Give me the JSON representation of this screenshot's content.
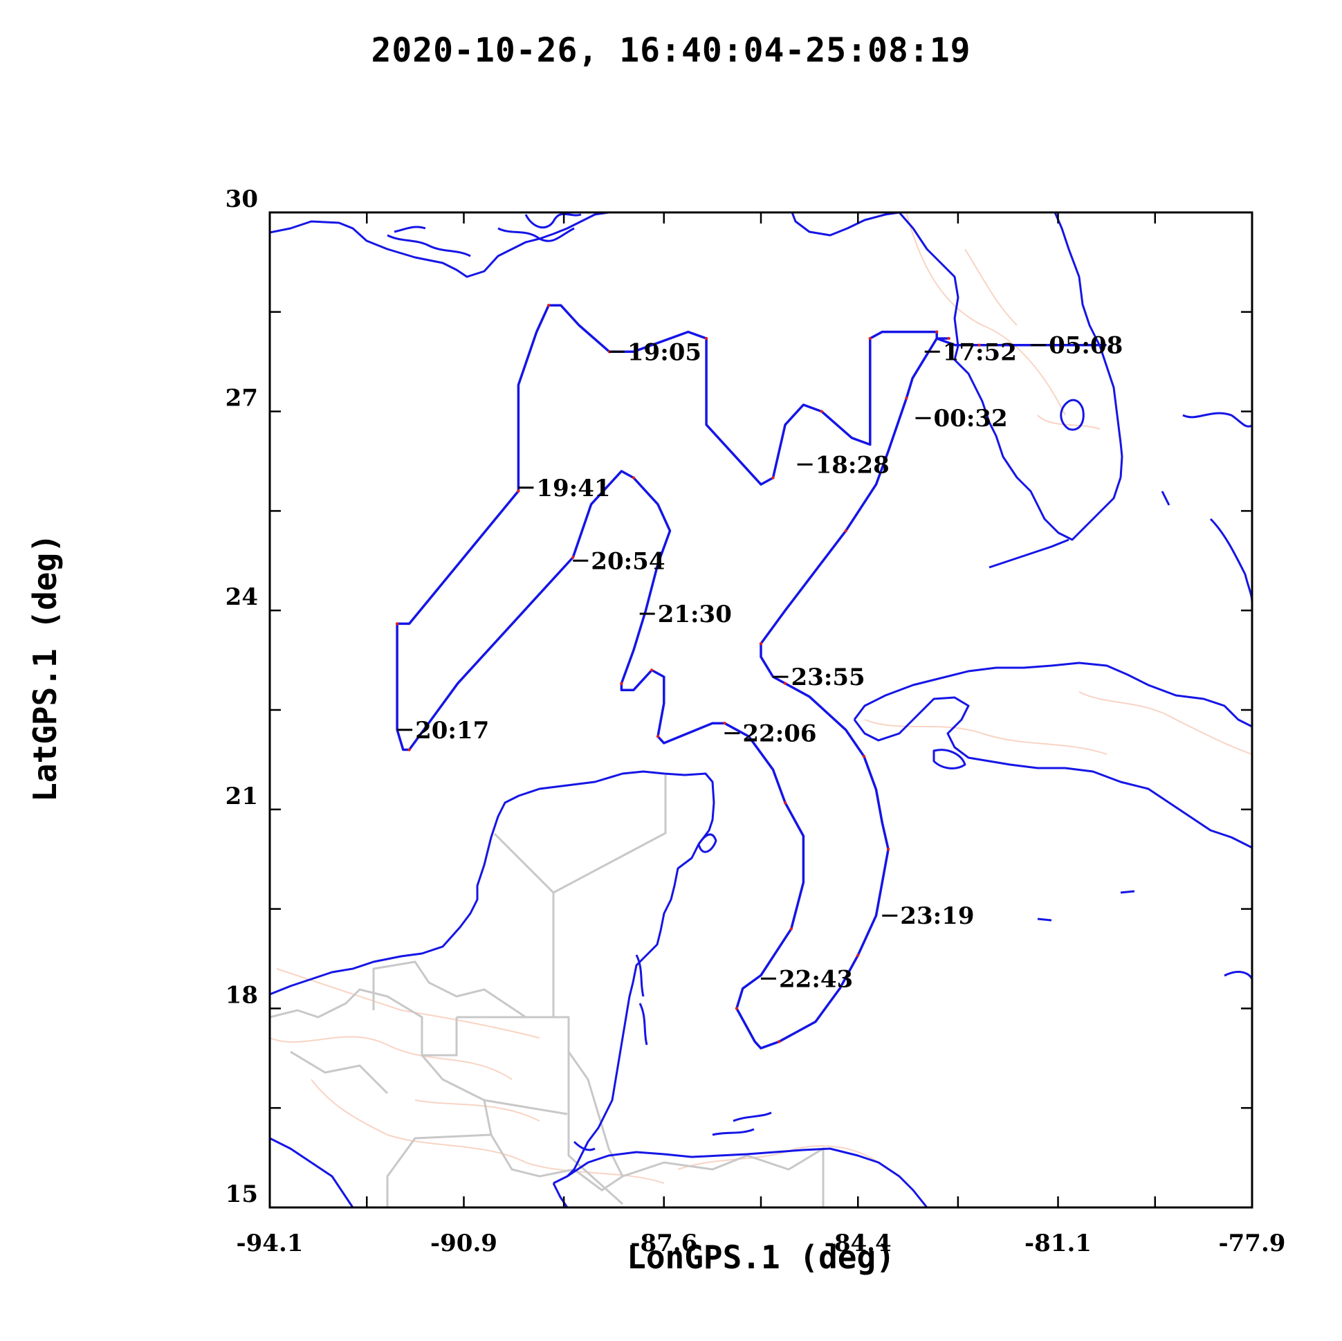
{
  "title": "2020-10-26, 16:40:04-25:08:19",
  "xlabel": "LonGPS.1 (deg)",
  "ylabel": "LatGPS.1 (deg)",
  "colors": {
    "coastline": "#1515e6",
    "track": "#1515e6",
    "track_marks": "#e02020",
    "borders": "#c8c8c8",
    "rivers": "#f8d4c4",
    "axes": "#000000"
  },
  "chart_data": {
    "type": "map-track",
    "xlim": [
      -94.1,
      -77.9
    ],
    "ylim": [
      15,
      30
    ],
    "x_tick_labels": [
      "-94.1",
      "-90.9",
      "-87.6",
      "-84.4",
      "-81.1",
      "-77.9"
    ],
    "y_tick_labels": [
      "15",
      "18",
      "21",
      "24",
      "27",
      "30"
    ],
    "x_ticks": [
      -94.1,
      -92.5,
      -90.9,
      -89.25,
      -87.6,
      -86.0,
      -84.4,
      -82.75,
      -81.1,
      -79.5,
      -77.9
    ],
    "y_ticks": [
      15,
      16.5,
      18,
      19.5,
      21,
      22.5,
      24,
      25.5,
      27,
      28.5,
      30
    ],
    "track": [
      [
        -80.3,
        28.0
      ],
      [
        -82.4,
        28.0
      ],
      [
        -82.8,
        28.0
      ],
      [
        -83.1,
        28.1
      ],
      [
        -83.1,
        28.2
      ],
      [
        -83.6,
        28.2
      ],
      [
        -84.0,
        28.2
      ],
      [
        -84.2,
        28.1
      ],
      [
        -84.2,
        26.5
      ],
      [
        -84.5,
        26.6
      ],
      [
        -85.0,
        27.0
      ],
      [
        -85.3,
        27.1
      ],
      [
        -85.6,
        26.8
      ],
      [
        -85.8,
        26.0
      ],
      [
        -86.0,
        25.9
      ],
      [
        -86.9,
        26.8
      ],
      [
        -86.9,
        28.1
      ],
      [
        -87.2,
        28.2
      ],
      [
        -88.1,
        27.9
      ],
      [
        -88.5,
        27.9
      ],
      [
        -89.0,
        28.3
      ],
      [
        -89.3,
        28.6
      ],
      [
        -89.5,
        28.6
      ],
      [
        -89.7,
        28.2
      ],
      [
        -90.0,
        27.4
      ],
      [
        -90.0,
        25.8
      ],
      [
        -90.9,
        24.8
      ],
      [
        -91.8,
        23.8
      ],
      [
        -92.0,
        23.8
      ],
      [
        -92.0,
        22.2
      ],
      [
        -91.9,
        21.9
      ],
      [
        -91.8,
        21.9
      ],
      [
        -91.0,
        22.9
      ],
      [
        -89.8,
        24.1
      ],
      [
        -89.1,
        24.8
      ],
      [
        -88.8,
        25.6
      ],
      [
        -88.3,
        26.1
      ],
      [
        -88.1,
        26.0
      ],
      [
        -87.7,
        25.6
      ],
      [
        -87.5,
        25.2
      ],
      [
        -87.7,
        24.7
      ],
      [
        -87.9,
        24.0
      ],
      [
        -88.1,
        23.4
      ],
      [
        -88.3,
        22.9
      ],
      [
        -88.3,
        22.8
      ],
      [
        -88.1,
        22.8
      ],
      [
        -87.8,
        23.1
      ],
      [
        -87.6,
        23.0
      ],
      [
        -87.6,
        22.6
      ],
      [
        -87.7,
        22.1
      ],
      [
        -87.6,
        22.0
      ],
      [
        -86.8,
        22.3
      ],
      [
        -86.6,
        22.3
      ],
      [
        -86.2,
        22.1
      ],
      [
        -85.8,
        21.6
      ],
      [
        -85.6,
        21.1
      ],
      [
        -85.3,
        20.6
      ],
      [
        -85.3,
        19.9
      ],
      [
        -85.5,
        19.2
      ],
      [
        -86.0,
        18.5
      ],
      [
        -86.3,
        18.3
      ],
      [
        -86.4,
        18.0
      ],
      [
        -86.1,
        17.5
      ],
      [
        -86.0,
        17.4
      ],
      [
        -85.7,
        17.5
      ],
      [
        -85.1,
        17.8
      ],
      [
        -84.7,
        18.3
      ],
      [
        -84.4,
        18.8
      ],
      [
        -84.1,
        19.4
      ],
      [
        -84.0,
        19.9
      ],
      [
        -83.9,
        20.4
      ],
      [
        -84.0,
        20.8
      ],
      [
        -84.1,
        21.3
      ],
      [
        -84.3,
        21.8
      ],
      [
        -84.6,
        22.2
      ],
      [
        -85.2,
        22.7
      ],
      [
        -85.6,
        22.9
      ],
      [
        -85.8,
        23.0
      ],
      [
        -86.0,
        23.3
      ],
      [
        -86.0,
        23.5
      ],
      [
        -85.6,
        24.0
      ],
      [
        -85.1,
        24.6
      ],
      [
        -84.6,
        25.2
      ],
      [
        -84.1,
        25.9
      ],
      [
        -83.9,
        26.4
      ],
      [
        -83.6,
        27.2
      ],
      [
        -83.5,
        27.5
      ],
      [
        -83.1,
        28.1
      ],
      [
        -82.9,
        28.1
      ]
    ],
    "annotations": [
      {
        "label": "19:05",
        "lon": -88.5,
        "lat": 27.9
      },
      {
        "label": "17:52",
        "lon": -83.3,
        "lat": 27.9
      },
      {
        "label": "05:08",
        "lon": -81.55,
        "lat": 28.0
      },
      {
        "label": "00:32",
        "lon": -83.45,
        "lat": 26.9
      },
      {
        "label": "18:28",
        "lon": -85.4,
        "lat": 26.2
      },
      {
        "label": "19:41",
        "lon": -90.0,
        "lat": 25.85
      },
      {
        "label": "20:54",
        "lon": -89.1,
        "lat": 24.75
      },
      {
        "label": "21:30",
        "lon": -88.0,
        "lat": 23.95
      },
      {
        "label": "23:55",
        "lon": -85.8,
        "lat": 23.0
      },
      {
        "label": "20:17",
        "lon": -92.0,
        "lat": 22.2
      },
      {
        "label": "22:06",
        "lon": -86.6,
        "lat": 22.15
      },
      {
        "label": "23:19",
        "lon": -84.0,
        "lat": 19.4
      },
      {
        "label": "22:43",
        "lon": -86.0,
        "lat": 18.45
      }
    ]
  }
}
